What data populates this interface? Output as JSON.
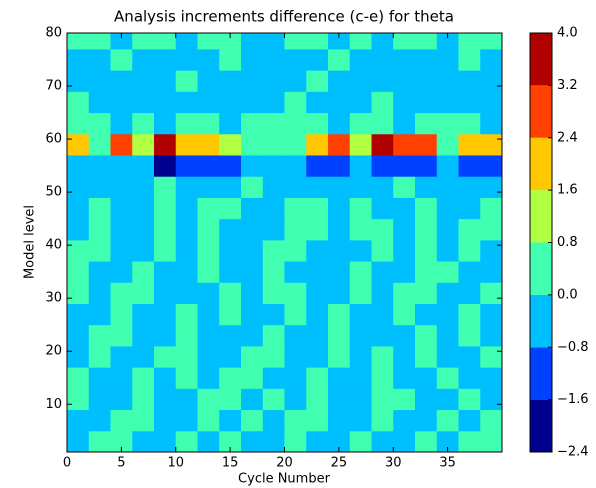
{
  "chart_data": {
    "type": "contourf",
    "title": "Analysis increments difference (c-e) for theta",
    "xlabel": "Cycle Number",
    "ylabel": "Model level",
    "xlim": [
      0,
      40
    ],
    "ylim": [
      1,
      80
    ],
    "xticks": [
      0,
      5,
      10,
      15,
      20,
      25,
      30,
      35
    ],
    "yticks": [
      10,
      20,
      30,
      40,
      50,
      60,
      70,
      80
    ],
    "x": [
      1,
      3,
      5,
      7,
      9,
      11,
      13,
      15,
      17,
      19,
      21,
      23,
      25,
      27,
      29,
      31,
      33,
      35,
      37,
      39
    ],
    "y": [
      3,
      7,
      11,
      15,
      19,
      23,
      27,
      31,
      35,
      39,
      43,
      47,
      51,
      55,
      59,
      63,
      67,
      71,
      75,
      79
    ],
    "z": [
      [
        -0.4,
        0.4,
        0.4,
        -0.4,
        -0.4,
        0.4,
        -0.4,
        0.4,
        -0.4,
        -0.4,
        0.4,
        -0.4,
        -0.4,
        0.4,
        -0.4,
        -0.4,
        0.4,
        -0.4,
        0.4,
        0.4
      ],
      [
        -0.4,
        -0.4,
        0.4,
        0.4,
        -0.4,
        -0.4,
        0.4,
        -0.4,
        0.4,
        -0.4,
        0.4,
        0.4,
        -0.4,
        -0.4,
        0.4,
        -0.4,
        -0.4,
        0.4,
        -0.4,
        0.4
      ],
      [
        0.4,
        -0.4,
        -0.4,
        0.4,
        -0.4,
        -0.4,
        0.4,
        0.4,
        -0.4,
        0.4,
        -0.4,
        0.4,
        -0.4,
        -0.4,
        0.4,
        0.4,
        -0.4,
        -0.4,
        0.4,
        -0.4
      ],
      [
        0.4,
        -0.4,
        -0.4,
        0.4,
        -0.4,
        0.4,
        -0.4,
        0.4,
        0.4,
        -0.4,
        -0.4,
        0.4,
        -0.4,
        -0.4,
        0.4,
        -0.4,
        -0.4,
        0.4,
        -0.4,
        -0.4
      ],
      [
        -0.4,
        0.4,
        -0.4,
        -0.4,
        0.4,
        0.4,
        -0.4,
        -0.4,
        0.4,
        0.4,
        -0.4,
        -0.4,
        0.4,
        -0.4,
        0.4,
        -0.4,
        0.4,
        -0.4,
        -0.4,
        0.4
      ],
      [
        -0.4,
        0.4,
        0.4,
        -0.4,
        -0.4,
        0.4,
        -0.4,
        -0.4,
        -0.4,
        0.4,
        -0.4,
        -0.4,
        0.4,
        -0.4,
        -0.4,
        -0.4,
        0.4,
        -0.4,
        0.4,
        -0.4
      ],
      [
        -0.4,
        -0.4,
        0.4,
        -0.4,
        -0.4,
        0.4,
        -0.4,
        0.4,
        -0.4,
        -0.4,
        0.4,
        -0.4,
        0.4,
        -0.4,
        -0.4,
        0.4,
        -0.4,
        -0.4,
        0.4,
        -0.4
      ],
      [
        0.4,
        -0.4,
        0.4,
        0.4,
        -0.4,
        -0.4,
        -0.4,
        0.4,
        -0.4,
        0.4,
        0.4,
        -0.4,
        -0.4,
        0.4,
        -0.4,
        0.4,
        0.4,
        -0.4,
        -0.4,
        0.4
      ],
      [
        0.4,
        -0.4,
        -0.4,
        0.4,
        -0.4,
        -0.4,
        0.4,
        -0.4,
        -0.4,
        0.4,
        -0.4,
        -0.4,
        -0.4,
        0.4,
        -0.4,
        -0.4,
        0.4,
        0.4,
        -0.4,
        -0.4
      ],
      [
        0.4,
        0.4,
        -0.4,
        -0.4,
        0.4,
        -0.4,
        0.4,
        -0.4,
        -0.4,
        0.4,
        0.4,
        -0.4,
        -0.4,
        -0.4,
        0.4,
        -0.4,
        0.4,
        -0.4,
        0.4,
        -0.4
      ],
      [
        -0.4,
        0.4,
        -0.4,
        -0.4,
        0.4,
        -0.4,
        0.4,
        -0.4,
        -0.4,
        -0.4,
        0.4,
        0.4,
        -0.4,
        0.4,
        0.4,
        -0.4,
        0.4,
        -0.4,
        0.4,
        0.4
      ],
      [
        -0.4,
        0.4,
        -0.4,
        -0.4,
        0.4,
        -0.4,
        0.4,
        0.4,
        -0.4,
        -0.4,
        0.4,
        0.4,
        -0.4,
        0.4,
        -0.4,
        -0.4,
        0.4,
        -0.4,
        -0.4,
        0.4
      ],
      [
        -0.4,
        -0.4,
        -0.4,
        -0.4,
        0.4,
        -0.4,
        -0.4,
        -0.4,
        0.4,
        -0.4,
        -0.4,
        -0.4,
        -0.4,
        -0.4,
        -0.4,
        0.4,
        -0.4,
        -0.4,
        -0.4,
        -0.4
      ],
      [
        -0.4,
        -0.4,
        -0.4,
        -0.4,
        -2.0,
        -1.2,
        -1.2,
        -1.2,
        -0.4,
        -0.4,
        -0.4,
        -1.2,
        -1.2,
        -0.4,
        -1.2,
        -1.2,
        -1.2,
        -0.4,
        -1.2,
        -1.2
      ],
      [
        2.0,
        0.4,
        2.8,
        1.2,
        3.6,
        2.0,
        2.0,
        1.2,
        0.4,
        0.4,
        0.4,
        2.0,
        2.8,
        1.2,
        3.6,
        2.8,
        2.8,
        0.4,
        2.0,
        2.0
      ],
      [
        0.4,
        0.4,
        -0.4,
        0.4,
        -0.4,
        0.4,
        0.4,
        -0.4,
        0.4,
        0.4,
        0.4,
        0.4,
        -0.4,
        0.4,
        0.4,
        -0.4,
        0.4,
        0.4,
        0.4,
        -0.4
      ],
      [
        0.4,
        -0.4,
        -0.4,
        -0.4,
        -0.4,
        -0.4,
        -0.4,
        -0.4,
        -0.4,
        -0.4,
        0.4,
        -0.4,
        -0.4,
        -0.4,
        0.4,
        -0.4,
        -0.4,
        -0.4,
        -0.4,
        -0.4
      ],
      [
        -0.4,
        -0.4,
        -0.4,
        -0.4,
        -0.4,
        0.4,
        -0.4,
        -0.4,
        -0.4,
        -0.4,
        -0.4,
        0.4,
        -0.4,
        -0.4,
        -0.4,
        -0.4,
        -0.4,
        -0.4,
        -0.4,
        -0.4
      ],
      [
        -0.4,
        -0.4,
        0.4,
        -0.4,
        -0.4,
        -0.4,
        -0.4,
        0.4,
        -0.4,
        -0.4,
        -0.4,
        -0.4,
        0.4,
        -0.4,
        -0.4,
        -0.4,
        -0.4,
        -0.4,
        0.4,
        -0.4
      ],
      [
        0.4,
        0.4,
        -0.4,
        0.4,
        0.4,
        -0.4,
        0.4,
        0.4,
        -0.4,
        -0.4,
        0.4,
        0.4,
        -0.4,
        0.4,
        -0.4,
        0.4,
        0.4,
        -0.4,
        0.4,
        0.4
      ]
    ],
    "colors": [
      "#00008f",
      "#0040ff",
      "#00bfff",
      "#40ffb0",
      "#b0ff40",
      "#ffc800",
      "#ff4000",
      "#b00000"
    ],
    "colorbar_ticks": [
      {
        "value": -2.4,
        "label": "−2.4"
      },
      {
        "value": -1.6,
        "label": "−1.6"
      },
      {
        "value": -0.8,
        "label": "−0.8"
      },
      {
        "value": 0,
        "label": "0.0"
      },
      {
        "value": 0.8,
        "label": "0.8"
      },
      {
        "value": 1.6,
        "label": "1.6"
      },
      {
        "value": 2.4,
        "label": "2.4"
      },
      {
        "value": 3.2,
        "label": "3.2"
      },
      {
        "value": 4,
        "label": "4.0"
      }
    ]
  }
}
